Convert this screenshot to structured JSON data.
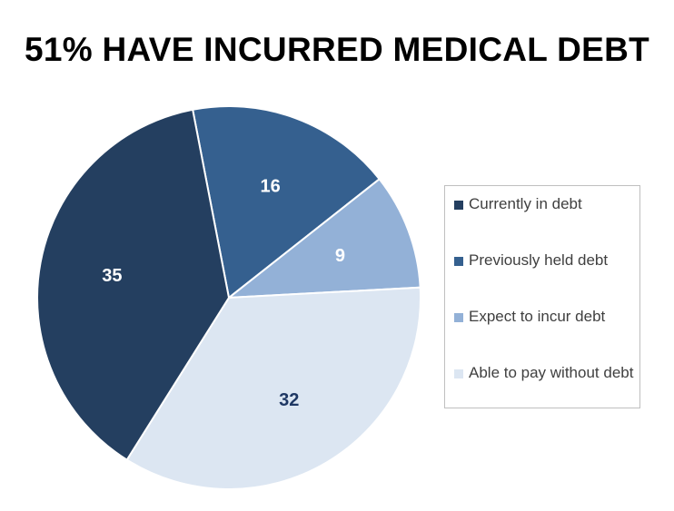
{
  "chart_data": {
    "type": "pie",
    "title": "51% HAVE INCURRED MEDICAL DEBT",
    "categories": [
      "Currently in debt",
      "Previously held debt",
      "Expect to incur debt",
      "Able to pay without debt"
    ],
    "values": [
      35,
      16,
      9,
      32
    ],
    "colors": [
      "#243f60",
      "#35608f",
      "#93b1d7",
      "#dce6f2"
    ],
    "label_colors": [
      "#ffffff",
      "#ffffff",
      "#ffffff",
      "#1f3864"
    ],
    "slice_order_clockwise_from_top": [
      1,
      2,
      3,
      0
    ],
    "legend_position": "right"
  }
}
